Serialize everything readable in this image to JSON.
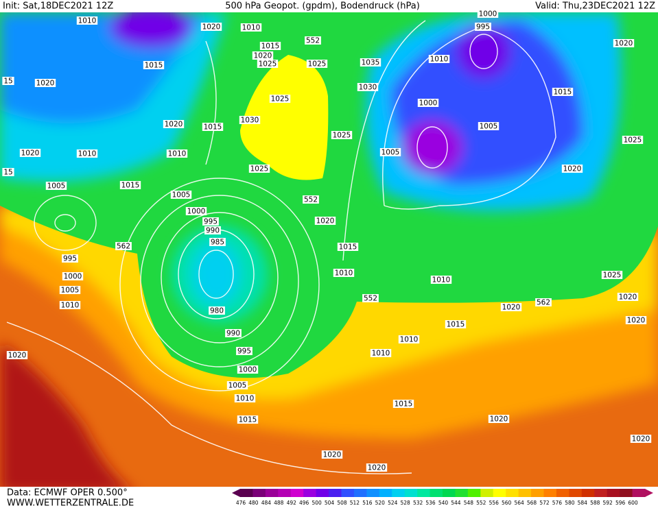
{
  "header": {
    "init": "Init: Sat,18DEC2021 12Z",
    "title": "500 hPa Geopot. (gpdm), Bodendruck (hPa)",
    "valid": "Valid: Thu,23DEC2021 12Z"
  },
  "isobar_labels": [
    "1010",
    "1020",
    "1010",
    "552",
    "1015",
    "1020",
    "1025",
    "1025",
    "1035",
    "1010",
    "995",
    "1000",
    "1020",
    "1015",
    "15",
    "1020",
    "1030",
    "1025",
    "1015",
    "1000",
    "1020",
    "1030",
    "1015",
    "1005",
    "1025",
    "1025",
    "1020",
    "1010",
    "1010",
    "1005",
    "1025",
    "1020",
    "15",
    "1005",
    "1015",
    "1005",
    "552",
    "1000",
    "995",
    "1020",
    "990",
    "985",
    "562",
    "1015",
    "995",
    "1010",
    "1000",
    "1010",
    "1025",
    "1005",
    "552",
    "1020",
    "1020",
    "562",
    "1010",
    "980",
    "1015",
    "1020",
    "990",
    "1010",
    "995",
    "1010",
    "1020",
    "1000",
    "1005",
    "1010",
    "1015",
    "1015",
    "1020",
    "1020",
    "1020",
    "1020"
  ],
  "footer": {
    "source": "Data: ECMWF OPER 0.500°",
    "site": "WWW.WETTERZENTRALE.DE"
  },
  "legend": {
    "values": [
      476,
      480,
      484,
      488,
      492,
      496,
      500,
      504,
      508,
      512,
      516,
      520,
      524,
      528,
      532,
      536,
      540,
      544,
      548,
      552,
      556,
      560,
      564,
      568,
      572,
      576,
      580,
      584,
      588,
      592,
      596,
      600
    ],
    "colors": [
      "#5a0050",
      "#7a0078",
      "#9a0098",
      "#b400b4",
      "#d000d0",
      "#9a00e0",
      "#7000e8",
      "#4a20f0",
      "#3050ff",
      "#2070ff",
      "#1090ff",
      "#00b0ff",
      "#00d0f0",
      "#00e0d0",
      "#00e8a0",
      "#00e070",
      "#00d850",
      "#20e030",
      "#50f000",
      "#d0f000",
      "#ffff00",
      "#ffe000",
      "#ffc000",
      "#ffa000",
      "#ff8000",
      "#f06000",
      "#e04800",
      "#d03000",
      "#c02020",
      "#a81020",
      "#901020",
      "#b01060"
    ]
  }
}
